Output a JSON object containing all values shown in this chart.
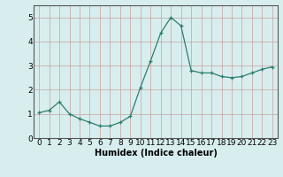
{
  "x": [
    0,
    1,
    2,
    3,
    4,
    5,
    6,
    7,
    8,
    9,
    10,
    11,
    12,
    13,
    14,
    15,
    16,
    17,
    18,
    19,
    20,
    21,
    22,
    23
  ],
  "y": [
    1.05,
    1.15,
    1.5,
    1.0,
    0.8,
    0.65,
    0.5,
    0.5,
    0.65,
    0.9,
    2.1,
    3.2,
    4.35,
    5.0,
    4.65,
    2.8,
    2.7,
    2.7,
    2.55,
    2.5,
    2.55,
    2.7,
    2.85,
    2.95
  ],
  "xlabel": "Humidex (Indice chaleur)",
  "ylim": [
    0,
    5.5
  ],
  "xlim": [
    -0.5,
    23.5
  ],
  "yticks": [
    0,
    1,
    2,
    3,
    4,
    5
  ],
  "xticks": [
    0,
    1,
    2,
    3,
    4,
    5,
    6,
    7,
    8,
    9,
    10,
    11,
    12,
    13,
    14,
    15,
    16,
    17,
    18,
    19,
    20,
    21,
    22,
    23
  ],
  "line_color": "#2d7d6e",
  "bg_color": "#d8eeee",
  "grid_color": "#c0d8d8",
  "xlabel_fontsize": 7,
  "tick_fontsize": 6.5
}
